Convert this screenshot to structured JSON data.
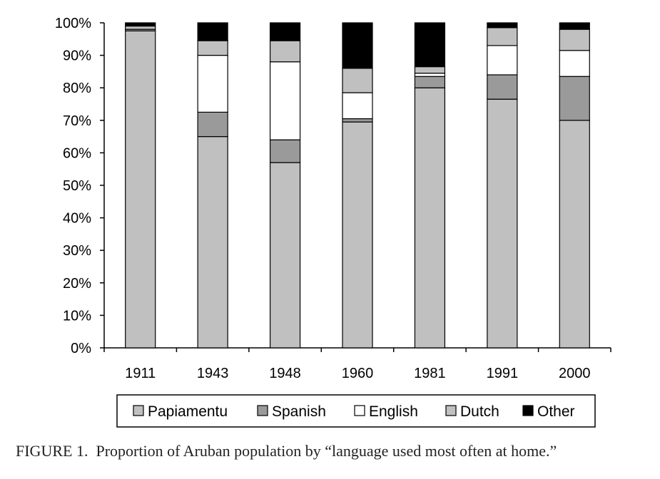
{
  "chart_data": {
    "type": "bar",
    "stacked": true,
    "percent": true,
    "categories": [
      "1911",
      "1943",
      "1948",
      "1960",
      "1981",
      "1991",
      "2000"
    ],
    "series": [
      {
        "name": "Papiamentu",
        "values": [
          97.5,
          65.0,
          57.0,
          69.5,
          80.0,
          76.5,
          70.0
        ],
        "color": "#c0c0c0"
      },
      {
        "name": "Spanish",
        "values": [
          0.5,
          7.5,
          7.0,
          1.0,
          3.5,
          7.5,
          13.5
        ],
        "color": "#9a9a9a"
      },
      {
        "name": "English",
        "values": [
          0.0,
          17.5,
          24.0,
          8.0,
          1.0,
          9.0,
          8.0
        ],
        "color": "#ffffff"
      },
      {
        "name": "Dutch",
        "values": [
          1.0,
          4.5,
          6.5,
          7.5,
          2.0,
          5.5,
          6.5
        ],
        "color": "#c0c0c0"
      },
      {
        "name": "Other",
        "values": [
          1.0,
          5.5,
          5.5,
          14.0,
          13.5,
          1.5,
          2.0
        ],
        "color": "#000000"
      }
    ],
    "ylim": [
      0,
      100
    ],
    "yticks": [
      "0%",
      "10%",
      "20%",
      "30%",
      "40%",
      "50%",
      "60%",
      "70%",
      "80%",
      "90%",
      "100%"
    ],
    "legend_position": "bottom",
    "grid": false
  },
  "caption": {
    "label": "FIGURE 1.",
    "text": "Proportion of Aruban population by “language used most often at home.”"
  }
}
